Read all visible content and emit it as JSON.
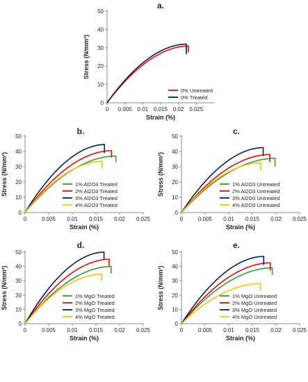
{
  "chart_data": [
    {
      "type": "line",
      "panel_label": "a.",
      "xlabel": "Strain (%)",
      "ylabel": "Stress (N/mm²)",
      "xlim": [
        0,
        0.03
      ],
      "ylim": [
        0,
        50
      ],
      "xticks": [
        "0",
        "0.005",
        "0.01",
        "0.015",
        "0.02",
        "0.025"
      ],
      "yticks": [
        "0",
        "10",
        "20",
        "30",
        "40",
        "50"
      ],
      "grid": false,
      "legend": "bottom-right",
      "series": [
        {
          "name": "0% Untreated",
          "color": "#ff0000",
          "end_strain": 0.0228,
          "peak_stress": 31,
          "drop_to": 27.5
        },
        {
          "name": "0% Treated",
          "color": "#002060",
          "end_strain": 0.0222,
          "peak_stress": 32,
          "drop_to": 26.5
        }
      ]
    },
    {
      "type": "line",
      "panel_label": "b.",
      "xlabel": "Strain (%)",
      "ylabel": "Stress (N/mm²)",
      "xlim": [
        0,
        0.025
      ],
      "ylim": [
        0,
        50
      ],
      "xticks": [
        "0",
        "0.005",
        "0.01",
        "0.015",
        "0.02",
        "0.025"
      ],
      "yticks": [
        "0",
        "10",
        "20",
        "30",
        "40",
        "50"
      ],
      "grid": false,
      "legend": "bottom-right",
      "series": [
        {
          "name": "1% Al2O3 Treated",
          "color": "#2ca02c",
          "end_strain": 0.0192,
          "peak_stress": 37,
          "drop_to": 33
        },
        {
          "name": "2% Al2O3 Treated",
          "color": "#ff0000",
          "end_strain": 0.0183,
          "peak_stress": 40.5,
          "drop_to": 36
        },
        {
          "name": "3% Al2O3 Treated",
          "color": "#002060",
          "end_strain": 0.0168,
          "peak_stress": 44.5,
          "drop_to": 39
        },
        {
          "name": "4% Al2O3 Treated",
          "color": "#ffc000",
          "end_strain": 0.0163,
          "peak_stress": 33.5,
          "drop_to": 28.5
        }
      ]
    },
    {
      "type": "line",
      "panel_label": "c.",
      "xlabel": "Strain (%)",
      "ylabel": "Stress (N/mm²)",
      "xlim": [
        0,
        0.025
      ],
      "ylim": [
        0,
        50
      ],
      "xticks": [
        "0",
        "0.005",
        "0.01",
        "0.015",
        "0.02",
        "0.025"
      ],
      "yticks": [
        "0",
        "10",
        "20",
        "30",
        "40",
        "50"
      ],
      "grid": false,
      "legend": "bottom-right",
      "series": [
        {
          "name": "1% Al2O3 Untreated",
          "color": "#2ca02c",
          "end_strain": 0.0198,
          "peak_stress": 35.5,
          "drop_to": 30
        },
        {
          "name": "2% Al2O3 Untreated",
          "color": "#ff0000",
          "end_strain": 0.0187,
          "peak_stress": 38,
          "drop_to": 33
        },
        {
          "name": "3% Al2O3 Untreated",
          "color": "#002060",
          "end_strain": 0.0173,
          "peak_stress": 42.5,
          "drop_to": 37
        },
        {
          "name": "4% Al2O3 Untreated",
          "color": "#ffc000",
          "end_strain": 0.0168,
          "peak_stress": 32.5,
          "drop_to": 27.5
        }
      ]
    },
    {
      "type": "line",
      "panel_label": "d.",
      "xlabel": "Strain (%)",
      "ylabel": "Stress (N/mm²)",
      "xlim": [
        0,
        0.025
      ],
      "ylim": [
        0,
        50
      ],
      "xticks": [
        "0",
        "0.005",
        "0.01",
        "0.015",
        "0.02",
        "0.025"
      ],
      "yticks": [
        "0",
        "10",
        "20",
        "30",
        "40",
        "50"
      ],
      "grid": false,
      "legend": "bottom-right",
      "series": [
        {
          "name": "1% MgO Treated",
          "color": "#2ca02c",
          "end_strain": 0.0182,
          "peak_stress": 40,
          "drop_to": 35
        },
        {
          "name": "2% MgO Treated",
          "color": "#ff0000",
          "end_strain": 0.0178,
          "peak_stress": 45,
          "drop_to": 40
        },
        {
          "name": "3% MgO Treated",
          "color": "#002060",
          "end_strain": 0.0167,
          "peak_stress": 50,
          "drop_to": 45
        },
        {
          "name": "4% MgO Treated",
          "color": "#ffc000",
          "end_strain": 0.0162,
          "peak_stress": 34.5,
          "drop_to": 30
        }
      ]
    },
    {
      "type": "line",
      "panel_label": "e.",
      "xlabel": "Strain (%)",
      "ylabel": "Stress (N/mm²)",
      "xlim": [
        0,
        0.025
      ],
      "ylim": [
        0,
        50
      ],
      "xticks": [
        "0",
        "0.005",
        "0.01",
        "0.015",
        "0.02",
        "0.025"
      ],
      "yticks": [
        "0",
        "10",
        "20",
        "30",
        "40",
        "50"
      ],
      "grid": false,
      "legend": "bottom-right",
      "series": [
        {
          "name": "1% MgO Untreated",
          "color": "#2ca02c",
          "end_strain": 0.0192,
          "peak_stress": 39,
          "drop_to": 34
        },
        {
          "name": "2% MgO Untreated",
          "color": "#ff0000",
          "end_strain": 0.0188,
          "peak_stress": 42.5,
          "drop_to": 37
        },
        {
          "name": "3% MgO Untreated",
          "color": "#002060",
          "end_strain": 0.0174,
          "peak_stress": 47,
          "drop_to": 41
        },
        {
          "name": "4% MgO Untreated",
          "color": "#ffc000",
          "end_strain": 0.0167,
          "peak_stress": 28,
          "drop_to": 23
        }
      ]
    }
  ]
}
